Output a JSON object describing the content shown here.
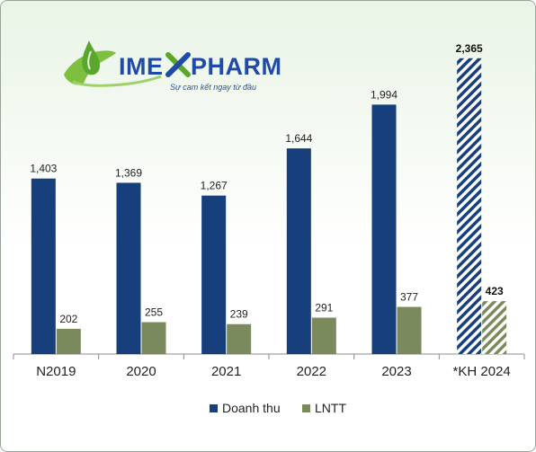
{
  "logo": {
    "brand_left": "IME",
    "brand_right": "PHARM",
    "tagline": "Sự cam kết ngay từ đầu"
  },
  "colors": {
    "revenue": "#163f7c",
    "profit": "#7b8a5d",
    "axis": "#8c8c8c"
  },
  "chart_data": {
    "type": "bar",
    "categories": [
      "N2019",
      "2020",
      "2021",
      "2022",
      "2023",
      "*KH 2024"
    ],
    "series": [
      {
        "name": "Doanh thu",
        "values": [
          1403,
          1369,
          1267,
          1644,
          1994,
          2365
        ],
        "labels": [
          "1,403",
          "1,369",
          "1,267",
          "1,644",
          "1,994",
          "2,365"
        ]
      },
      {
        "name": "LNTT",
        "values": [
          202,
          255,
          239,
          291,
          377,
          423
        ],
        "labels": [
          "202",
          "255",
          "239",
          "291",
          "377",
          "423"
        ]
      }
    ],
    "hatched_category": "*KH 2024",
    "ylim": [
      0,
      2500
    ],
    "grid": false,
    "legend": "bottom",
    "title": "",
    "xlabel": "",
    "ylabel": ""
  }
}
